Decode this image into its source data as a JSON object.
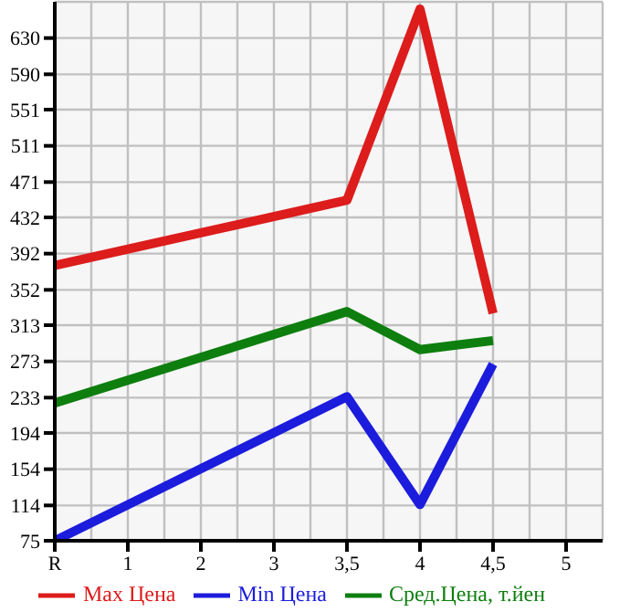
{
  "chart_data": {
    "type": "line",
    "categories": [
      "R",
      "1",
      "2",
      "3",
      "3,5",
      "4",
      "4,5",
      "5"
    ],
    "series": [
      {
        "name": "Max Цена",
        "color": "#dd1c1c",
        "values": [
          379,
          null,
          null,
          null,
          451,
          662,
          326,
          null
        ]
      },
      {
        "name": "Min Цена",
        "color": "#1c1cdd",
        "values": [
          75,
          null,
          null,
          null,
          234,
          115,
          270,
          null
        ]
      },
      {
        "name": "Сред.Цена, т.йен",
        "color": "#0e7e0e",
        "values": [
          227,
          null,
          null,
          null,
          328,
          286,
          296,
          null
        ]
      }
    ],
    "ylim": [
      75,
      670
    ],
    "yticks": [
      75,
      114,
      154,
      194,
      233,
      273,
      313,
      352,
      392,
      432,
      471,
      511,
      551,
      590,
      630
    ],
    "grid": true,
    "legend": "bottom",
    "marker": "none",
    "line_style": "solid"
  }
}
